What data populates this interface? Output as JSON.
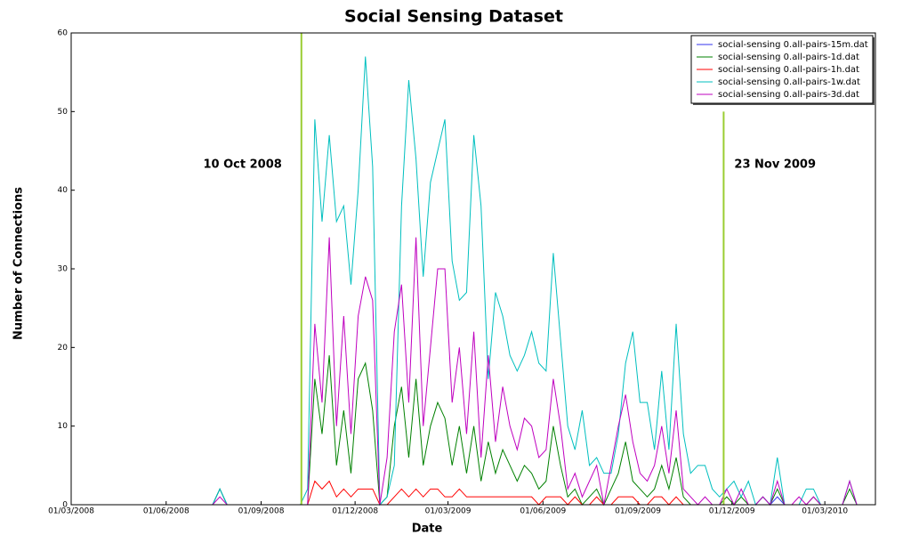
{
  "chart_data": {
    "type": "line",
    "title": "Social Sensing Dataset",
    "x_label": "Date",
    "y_label": "Number of Connections",
    "x": [
      "2008-03-01",
      "2008-07-16",
      "2008-07-23",
      "2008-07-30",
      "2008-10-09",
      "2008-10-16",
      "2008-10-23",
      "2008-10-30",
      "2008-11-06",
      "2008-11-13",
      "2008-11-20",
      "2008-11-27",
      "2008-12-04",
      "2008-12-11",
      "2008-12-18",
      "2008-12-25",
      "2009-01-01",
      "2009-01-08",
      "2009-01-15",
      "2009-01-22",
      "2009-01-29",
      "2009-02-05",
      "2009-02-12",
      "2009-02-19",
      "2009-02-26",
      "2009-03-05",
      "2009-03-12",
      "2009-03-19",
      "2009-03-26",
      "2009-04-02",
      "2009-04-09",
      "2009-04-16",
      "2009-04-23",
      "2009-04-30",
      "2009-05-07",
      "2009-05-14",
      "2009-05-21",
      "2009-05-28",
      "2009-06-04",
      "2009-06-11",
      "2009-06-18",
      "2009-06-25",
      "2009-07-02",
      "2009-07-09",
      "2009-07-16",
      "2009-07-23",
      "2009-07-30",
      "2009-08-06",
      "2009-08-13",
      "2009-08-20",
      "2009-08-27",
      "2009-09-03",
      "2009-09-10",
      "2009-09-17",
      "2009-09-24",
      "2009-10-01",
      "2009-10-08",
      "2009-10-15",
      "2009-10-22",
      "2009-10-29",
      "2009-11-05",
      "2009-11-12",
      "2009-11-19",
      "2009-11-26",
      "2009-12-03",
      "2009-12-10",
      "2009-12-17",
      "2009-12-24",
      "2009-12-31",
      "2010-01-07",
      "2010-01-14",
      "2010-01-21",
      "2010-01-28",
      "2010-02-04",
      "2010-02-11",
      "2010-02-18",
      "2010-02-25",
      "2010-03-04",
      "2010-03-11",
      "2010-03-18",
      "2010-03-25",
      "2010-04-01",
      "2010-04-08",
      "2010-04-15",
      "2010-04-19"
    ],
    "series": [
      {
        "name": "social-sensing 0.all-pairs-15m.dat",
        "color": "#3333ee",
        "values": [
          0,
          0,
          2,
          0,
          0,
          0,
          0,
          0,
          0,
          0,
          0,
          0,
          0,
          0,
          0,
          0,
          0,
          0,
          0,
          0,
          0,
          0,
          0,
          0,
          0,
          0,
          0,
          0,
          0,
          0,
          0,
          0,
          0,
          0,
          0,
          0,
          0,
          0,
          0,
          0,
          0,
          0,
          0,
          0,
          0,
          0,
          0,
          0,
          0,
          0,
          0,
          0,
          0,
          0,
          0,
          0,
          0,
          0,
          0,
          0,
          0,
          0,
          0,
          0,
          0,
          0,
          0,
          0,
          0,
          0,
          1,
          0,
          0,
          0,
          0,
          0,
          0,
          0,
          0,
          0,
          0,
          0,
          0,
          0,
          0
        ]
      },
      {
        "name": "social-sensing 0.all-pairs-1d.dat",
        "color": "#008000",
        "values": [
          0,
          0,
          2,
          0,
          0,
          0,
          16,
          9,
          19,
          5,
          12,
          4,
          16,
          18,
          12,
          0,
          1,
          10,
          15,
          6,
          16,
          5,
          10,
          13,
          11,
          5,
          10,
          4,
          10,
          3,
          8,
          4,
          7,
          5,
          3,
          5,
          4,
          2,
          3,
          10,
          5,
          1,
          2,
          0,
          1,
          2,
          0,
          2,
          4,
          8,
          3,
          2,
          1,
          2,
          5,
          2,
          6,
          1,
          0,
          0,
          0,
          0,
          0,
          1,
          0,
          1,
          0,
          0,
          1,
          0,
          2,
          0,
          0,
          0,
          0,
          1,
          0,
          0,
          0,
          0,
          2,
          0,
          0,
          0,
          0
        ]
      },
      {
        "name": "social-sensing 0.all-pairs-1h.dat",
        "color": "#ff0000",
        "values": [
          0,
          0,
          0,
          0,
          0,
          0,
          3,
          2,
          3,
          1,
          2,
          1,
          2,
          2,
          2,
          0,
          0,
          1,
          2,
          1,
          2,
          1,
          2,
          2,
          1,
          1,
          2,
          1,
          1,
          1,
          1,
          1,
          1,
          1,
          1,
          1,
          1,
          0,
          1,
          1,
          1,
          0,
          1,
          0,
          0,
          1,
          0,
          0,
          1,
          1,
          1,
          0,
          0,
          1,
          1,
          0,
          1,
          0,
          0,
          0,
          0,
          0,
          0,
          0,
          0,
          0,
          0,
          0,
          0,
          0,
          0,
          0,
          0,
          0,
          0,
          0,
          0,
          0,
          0,
          0,
          0,
          0,
          0,
          0,
          0
        ]
      },
      {
        "name": "social-sensing 0.all-pairs-1w.dat",
        "color": "#00bfbf",
        "values": [
          0,
          0,
          2,
          0,
          0,
          2,
          49,
          36,
          47,
          36,
          38,
          28,
          40,
          57,
          43,
          0,
          1,
          5,
          38,
          54,
          44,
          29,
          41,
          45,
          49,
          31,
          26,
          27,
          47,
          38,
          16,
          27,
          24,
          19,
          17,
          19,
          22,
          18,
          17,
          32,
          21,
          10,
          7,
          12,
          5,
          6,
          4,
          4,
          9,
          18,
          22,
          13,
          13,
          7,
          17,
          7,
          23,
          9,
          4,
          5,
          5,
          2,
          1,
          2,
          3,
          1,
          3,
          0,
          1,
          0,
          6,
          0,
          0,
          0,
          2,
          2,
          0,
          0,
          0,
          0,
          3,
          0,
          0,
          0,
          0
        ]
      },
      {
        "name": "social-sensing 0.all-pairs-3d.dat",
        "color": "#bf00bf",
        "values": [
          0,
          0,
          1,
          0,
          0,
          0,
          23,
          13,
          34,
          10,
          24,
          9,
          24,
          29,
          26,
          0,
          6,
          22,
          28,
          13,
          34,
          10,
          20,
          30,
          30,
          13,
          20,
          9,
          22,
          6,
          19,
          8,
          15,
          10,
          7,
          11,
          10,
          6,
          7,
          16,
          10,
          2,
          4,
          1,
          3,
          5,
          0,
          5,
          10,
          14,
          8,
          4,
          3,
          5,
          10,
          4,
          12,
          2,
          1,
          0,
          1,
          0,
          0,
          2,
          0,
          2,
          0,
          0,
          1,
          0,
          3,
          0,
          0,
          1,
          0,
          1,
          0,
          0,
          0,
          0,
          3,
          0,
          0,
          0,
          0
        ]
      }
    ],
    "xlim": [
      "2008-03-01",
      "2010-04-19"
    ],
    "xticks": [
      {
        "value": "2008-03-01",
        "label": "01/03/2008"
      },
      {
        "value": "2008-06-01",
        "label": "01/06/2008"
      },
      {
        "value": "2008-09-01",
        "label": "01/09/2008"
      },
      {
        "value": "2008-12-01",
        "label": "01/12/2008"
      },
      {
        "value": "2009-03-01",
        "label": "01/03/2009"
      },
      {
        "value": "2009-06-01",
        "label": "01/06/2009"
      },
      {
        "value": "2009-09-01",
        "label": "01/09/2009"
      },
      {
        "value": "2009-12-01",
        "label": "01/12/2009"
      },
      {
        "value": "2010-03-01",
        "label": "01/03/2010"
      }
    ],
    "ylim": [
      0,
      60
    ],
    "yticks": [
      0,
      10,
      20,
      30,
      40,
      50,
      60
    ],
    "annotations": [
      {
        "x": "2008-10-10",
        "top": 60,
        "label": "10 Oct 2008",
        "color": "#9acd32"
      },
      {
        "x": "2009-11-23",
        "top": 50,
        "label": "23 Nov 2009",
        "color": "#9acd32"
      }
    ],
    "legend": "upper right"
  }
}
